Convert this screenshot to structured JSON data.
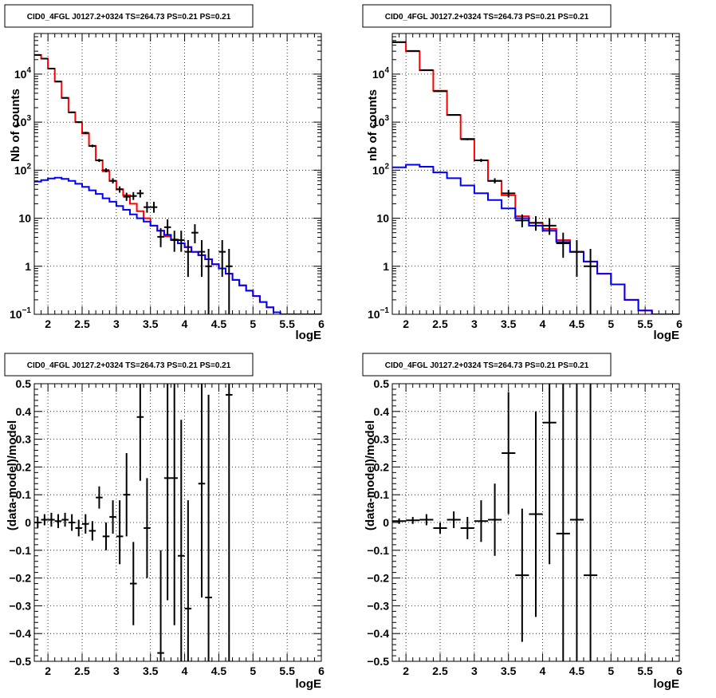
{
  "chart_data": [
    {
      "type": "histogram",
      "title": "CID0_4FGL J0127.2+0324 TS=264.73 PS=0.21 PS=0.21",
      "xlabel": "logE",
      "ylabel": "Nb of counts",
      "xlim": [
        1.8,
        6.0
      ],
      "ylim": [
        0.1,
        70000
      ],
      "ylog": true,
      "grid": true,
      "xticks": [
        "2",
        "2.5",
        "3",
        "3.5",
        "4",
        "4.5",
        "5",
        "5.5",
        "6"
      ],
      "yticks": [
        {
          "v": 0.1,
          "base": "10",
          "exp": "−1"
        },
        {
          "v": 1,
          "text": "1"
        },
        {
          "v": 10,
          "text": "10"
        },
        {
          "v": 100,
          "base": "10",
          "exp": "2"
        },
        {
          "v": 1000,
          "base": "10",
          "exp": "3"
        },
        {
          "v": 10000,
          "base": "10",
          "exp": "4"
        }
      ],
      "bin_edges": [
        1.8,
        1.9,
        2.0,
        2.1,
        2.2,
        2.3,
        2.4,
        2.5,
        2.6,
        2.7,
        2.8,
        2.9,
        3.0,
        3.1,
        3.2,
        3.3,
        3.4,
        3.5,
        3.6,
        3.7,
        3.8,
        3.9,
        4.0,
        4.1,
        4.2,
        4.3,
        4.4,
        4.5,
        4.6,
        4.7,
        4.8,
        4.9,
        5.0,
        5.1,
        5.2,
        5.3,
        5.4,
        5.5,
        5.6,
        5.7,
        5.8,
        5.9,
        6.0
      ],
      "series": [
        {
          "color": "#ff0000",
          "values": [
            25000,
            21000,
            13000,
            7000,
            3200,
            1600,
            1000,
            580,
            320,
            160,
            95,
            60,
            40,
            30,
            20,
            14,
            10,
            7,
            5.5,
            4.2,
            3.5,
            3.0,
            2.5,
            2.0,
            1.7,
            1.4,
            1.1,
            0.9,
            0.7,
            0.52,
            0.4,
            0.31,
            0.24,
            0.18,
            0.14,
            0.11,
            0.1,
            0.1,
            0.1,
            0.1,
            0.1,
            0.1
          ]
        },
        {
          "color": "#0000ff",
          "values": [
            58,
            62,
            67,
            70,
            66,
            60,
            52,
            45,
            38,
            32,
            26,
            22,
            18,
            15,
            12,
            10,
            8.5,
            7,
            5.5,
            4.5,
            3.6,
            3.0,
            2.5,
            2.0,
            1.7,
            1.4,
            1.1,
            0.9,
            0.7,
            0.52,
            0.4,
            0.31,
            0.24,
            0.18,
            0.14,
            0.11,
            0.1,
            0.1,
            0.1,
            0.1,
            0.1,
            0.1
          ]
        }
      ],
      "points": [
        {
          "x": 1.85,
          "y": 25000,
          "lo": 24500,
          "hi": 25500
        },
        {
          "x": 1.95,
          "y": 21000,
          "lo": 20500,
          "hi": 21500
        },
        {
          "x": 2.05,
          "y": 13000,
          "lo": 12700,
          "hi": 13300
        },
        {
          "x": 2.15,
          "y": 7000,
          "lo": 6800,
          "hi": 7200
        },
        {
          "x": 2.25,
          "y": 3200,
          "lo": 3100,
          "hi": 3300
        },
        {
          "x": 2.35,
          "y": 1600,
          "lo": 1550,
          "hi": 1650
        },
        {
          "x": 2.45,
          "y": 1000,
          "lo": 960,
          "hi": 1040
        },
        {
          "x": 2.55,
          "y": 600,
          "lo": 570,
          "hi": 630
        },
        {
          "x": 2.65,
          "y": 320,
          "lo": 300,
          "hi": 340
        },
        {
          "x": 2.75,
          "y": 160,
          "lo": 148,
          "hi": 172
        },
        {
          "x": 2.85,
          "y": 100,
          "lo": 90,
          "hi": 110
        },
        {
          "x": 2.95,
          "y": 60,
          "lo": 53,
          "hi": 68
        },
        {
          "x": 3.05,
          "y": 40,
          "lo": 34,
          "hi": 46
        },
        {
          "x": 3.15,
          "y": 28,
          "lo": 23,
          "hi": 34
        },
        {
          "x": 3.25,
          "y": 29,
          "lo": 24,
          "hi": 35
        },
        {
          "x": 3.35,
          "y": 33,
          "lo": 27,
          "hi": 39
        },
        {
          "x": 3.45,
          "y": 17,
          "lo": 13,
          "hi": 22
        },
        {
          "x": 3.55,
          "y": 17,
          "lo": 13,
          "hi": 22
        },
        {
          "x": 3.65,
          "y": 4.1,
          "lo": 2.5,
          "hi": 6.2
        },
        {
          "x": 3.75,
          "y": 6.5,
          "lo": 4.5,
          "hi": 9.5
        },
        {
          "x": 3.85,
          "y": 3.5,
          "lo": 2.0,
          "hi": 5.5
        },
        {
          "x": 3.95,
          "y": 3.5,
          "lo": 2.0,
          "hi": 5.5
        },
        {
          "x": 4.05,
          "y": 2.0,
          "lo": 0.6,
          "hi": 3.5
        },
        {
          "x": 4.15,
          "y": 5.0,
          "lo": 3.0,
          "hi": 7.5
        },
        {
          "x": 4.25,
          "y": 2.0,
          "lo": 0.6,
          "hi": 3.5
        },
        {
          "x": 4.35,
          "y": 1.0,
          "lo": 0.1,
          "hi": 2.3
        },
        {
          "x": 4.45,
          "y": 0,
          "lo": 0.1,
          "hi": 0.1
        },
        {
          "x": 4.55,
          "y": 2.0,
          "lo": 0.6,
          "hi": 3.5
        },
        {
          "x": 4.65,
          "y": 1.0,
          "lo": 0.1,
          "hi": 2.3
        }
      ]
    },
    {
      "type": "histogram",
      "title": "CID0_4FGL J0127.2+0324 TS=264.73 PS=0.21 PS=0.21",
      "xlabel": "logE",
      "ylabel": "nb of counts",
      "xlim": [
        1.8,
        6.0
      ],
      "ylim": [
        0.1,
        70000
      ],
      "ylog": true,
      "grid": true,
      "xticks": [
        "2",
        "2.5",
        "3",
        "3.5",
        "4",
        "4.5",
        "5",
        "5.5",
        "6"
      ],
      "yticks": [
        {
          "v": 0.1,
          "base": "10",
          "exp": "−1"
        },
        {
          "v": 1,
          "text": "1"
        },
        {
          "v": 10,
          "text": "10"
        },
        {
          "v": 100,
          "base": "10",
          "exp": "2"
        },
        {
          "v": 1000,
          "base": "10",
          "exp": "3"
        },
        {
          "v": 10000,
          "base": "10",
          "exp": "4"
        }
      ],
      "bin_edges": [
        1.8,
        2.0,
        2.2,
        2.4,
        2.6,
        2.8,
        3.0,
        3.2,
        3.4,
        3.6,
        3.8,
        4.0,
        4.2,
        4.4,
        4.6,
        4.8,
        5.0,
        5.2,
        5.4,
        5.6,
        5.8,
        6.0
      ],
      "series": [
        {
          "color": "#ff0000",
          "values": [
            46000,
            30000,
            12000,
            4500,
            1400,
            450,
            160,
            60,
            30,
            11,
            8,
            6,
            3.5,
            2.0,
            1.25,
            0.7,
            0.42,
            0.2,
            0.12,
            0.1,
            0.1
          ]
        },
        {
          "color": "#0000ff",
          "values": [
            115,
            130,
            118,
            90,
            68,
            48,
            33,
            24,
            16,
            10,
            7,
            5.5,
            3.2,
            2.0,
            1.25,
            0.7,
            0.42,
            0.2,
            0.12,
            0.1,
            0.1
          ]
        }
      ],
      "points": [
        {
          "x": 1.9,
          "y": 46500,
          "lo": 46000,
          "hi": 47000
        },
        {
          "x": 2.1,
          "y": 30300,
          "lo": 29900,
          "hi": 30700
        },
        {
          "x": 2.3,
          "y": 12100,
          "lo": 11900,
          "hi": 12300
        },
        {
          "x": 2.5,
          "y": 4400,
          "lo": 4300,
          "hi": 4500
        },
        {
          "x": 2.7,
          "y": 1420,
          "lo": 1370,
          "hi": 1470
        },
        {
          "x": 2.9,
          "y": 440,
          "lo": 420,
          "hi": 460
        },
        {
          "x": 3.1,
          "y": 160,
          "lo": 148,
          "hi": 172
        },
        {
          "x": 3.3,
          "y": 60,
          "lo": 53,
          "hi": 68
        },
        {
          "x": 3.5,
          "y": 33,
          "lo": 27,
          "hi": 39
        },
        {
          "x": 3.7,
          "y": 9,
          "lo": 6.5,
          "hi": 12
        },
        {
          "x": 3.9,
          "y": 8,
          "lo": 5.5,
          "hi": 11
        },
        {
          "x": 4.1,
          "y": 7,
          "lo": 4.5,
          "hi": 10
        },
        {
          "x": 4.3,
          "y": 3,
          "lo": 1.5,
          "hi": 5
        },
        {
          "x": 4.5,
          "y": 2,
          "lo": 0.6,
          "hi": 3.5
        },
        {
          "x": 4.7,
          "y": 1,
          "lo": 0.1,
          "hi": 2.3
        }
      ]
    },
    {
      "type": "scatter",
      "title": "CID0_4FGL J0127.2+0324 TS=264.73 PS=0.21 PS=0.21",
      "xlabel": "logE",
      "ylabel": "(data-model)/model",
      "xlim": [
        1.8,
        6.0
      ],
      "ylim": [
        -0.5,
        0.5
      ],
      "ylog": false,
      "grid": true,
      "xticks": [
        "2",
        "2.5",
        "3",
        "3.5",
        "4",
        "4.5",
        "5",
        "5.5",
        "6"
      ],
      "yticks": [
        {
          "v": -0.5,
          "text": "−0.5"
        },
        {
          "v": -0.4,
          "text": "−0.4"
        },
        {
          "v": -0.3,
          "text": "−0.3"
        },
        {
          "v": -0.2,
          "text": "−0.2"
        },
        {
          "v": -0.1,
          "text": "−0.1"
        },
        {
          "v": 0,
          "text": "0"
        },
        {
          "v": 0.1,
          "text": "0.1"
        },
        {
          "v": 0.2,
          "text": "0.2"
        },
        {
          "v": 0.3,
          "text": "0.3"
        },
        {
          "v": 0.4,
          "text": "0.4"
        },
        {
          "v": 0.5,
          "text": "0.5"
        }
      ],
      "halfwidth": 0.05,
      "points": [
        {
          "x": 1.85,
          "y": 0.0,
          "lo": -0.02,
          "hi": 0.02
        },
        {
          "x": 1.95,
          "y": 0.01,
          "lo": -0.01,
          "hi": 0.03
        },
        {
          "x": 2.05,
          "y": 0.01,
          "lo": -0.015,
          "hi": 0.035
        },
        {
          "x": 2.15,
          "y": 0.005,
          "lo": -0.02,
          "hi": 0.03
        },
        {
          "x": 2.25,
          "y": 0.01,
          "lo": -0.015,
          "hi": 0.035
        },
        {
          "x": 2.35,
          "y": 0.0,
          "lo": -0.03,
          "hi": 0.03
        },
        {
          "x": 2.45,
          "y": -0.02,
          "lo": -0.05,
          "hi": 0.01
        },
        {
          "x": 2.55,
          "y": -0.005,
          "lo": -0.04,
          "hi": 0.03
        },
        {
          "x": 2.65,
          "y": -0.03,
          "lo": -0.065,
          "hi": 0.005
        },
        {
          "x": 2.75,
          "y": 0.09,
          "lo": 0.05,
          "hi": 0.13
        },
        {
          "x": 2.85,
          "y": -0.05,
          "lo": -0.1,
          "hi": 0.0
        },
        {
          "x": 2.95,
          "y": 0.02,
          "lo": -0.04,
          "hi": 0.08
        },
        {
          "x": 3.05,
          "y": -0.05,
          "lo": -0.15,
          "hi": 0.08
        },
        {
          "x": 3.15,
          "y": 0.1,
          "lo": -0.05,
          "hi": 0.25
        },
        {
          "x": 3.25,
          "y": -0.22,
          "lo": -0.37,
          "hi": -0.07
        },
        {
          "x": 3.35,
          "y": 0.38,
          "lo": 0.15,
          "hi": 0.5
        },
        {
          "x": 3.45,
          "y": -0.02,
          "lo": -0.2,
          "hi": 0.16
        },
        {
          "x": 3.65,
          "y": -0.47,
          "lo": -0.5,
          "hi": -0.1
        },
        {
          "x": 3.75,
          "y": 0.16,
          "lo": -0.28,
          "hi": 0.5
        },
        {
          "x": 3.85,
          "y": 0.16,
          "lo": -0.37,
          "hi": 0.5
        },
        {
          "x": 3.95,
          "y": -0.12,
          "lo": -0.5,
          "hi": 0.37
        },
        {
          "x": 4.05,
          "y": -0.31,
          "lo": -0.5,
          "hi": 0.08
        },
        {
          "x": 4.25,
          "y": 0.14,
          "lo": -0.27,
          "hi": 0.5
        },
        {
          "x": 4.35,
          "y": -0.27,
          "lo": -0.5,
          "hi": 0.46
        },
        {
          "x": 4.65,
          "y": 0.46,
          "lo": -0.5,
          "hi": 0.5
        }
      ]
    },
    {
      "type": "scatter",
      "title": "CID0_4FGL J0127.2+0324 TS=264.73 PS=0.21 PS=0.21",
      "xlabel": "logE",
      "ylabel": "(data-model)/model",
      "xlim": [
        1.8,
        6.0
      ],
      "ylim": [
        -0.5,
        0.5
      ],
      "ylog": false,
      "grid": true,
      "xticks": [
        "2",
        "2.5",
        "3",
        "3.5",
        "4",
        "4.5",
        "5",
        "5.5",
        "6"
      ],
      "yticks": [
        {
          "v": -0.5,
          "text": "−0.5"
        },
        {
          "v": -0.4,
          "text": "−0.4"
        },
        {
          "v": -0.3,
          "text": "−0.3"
        },
        {
          "v": -0.2,
          "text": "−0.2"
        },
        {
          "v": -0.1,
          "text": "−0.1"
        },
        {
          "v": 0,
          "text": "0"
        },
        {
          "v": 0.1,
          "text": "0.1"
        },
        {
          "v": 0.2,
          "text": "0.2"
        },
        {
          "v": 0.3,
          "text": "0.3"
        },
        {
          "v": 0.4,
          "text": "0.4"
        },
        {
          "v": 0.5,
          "text": "0.5"
        }
      ],
      "halfwidth": 0.1,
      "points": [
        {
          "x": 1.9,
          "y": 0.005,
          "lo": -0.005,
          "hi": 0.015
        },
        {
          "x": 2.1,
          "y": 0.008,
          "lo": -0.005,
          "hi": 0.02
        },
        {
          "x": 2.3,
          "y": 0.01,
          "lo": -0.01,
          "hi": 0.03
        },
        {
          "x": 2.5,
          "y": -0.02,
          "lo": -0.04,
          "hi": 0.0
        },
        {
          "x": 2.7,
          "y": 0.01,
          "lo": -0.02,
          "hi": 0.04
        },
        {
          "x": 2.9,
          "y": -0.02,
          "lo": -0.06,
          "hi": 0.02
        },
        {
          "x": 3.1,
          "y": 0.005,
          "lo": -0.07,
          "hi": 0.08
        },
        {
          "x": 3.3,
          "y": 0.01,
          "lo": -0.12,
          "hi": 0.14
        },
        {
          "x": 3.5,
          "y": 0.25,
          "lo": 0.03,
          "hi": 0.47
        },
        {
          "x": 3.7,
          "y": -0.19,
          "lo": -0.43,
          "hi": 0.05
        },
        {
          "x": 3.9,
          "y": 0.03,
          "lo": -0.34,
          "hi": 0.4
        },
        {
          "x": 4.1,
          "y": 0.36,
          "lo": -0.15,
          "hi": 0.5
        },
        {
          "x": 4.3,
          "y": -0.04,
          "lo": -0.5,
          "hi": 0.5
        },
        {
          "x": 4.5,
          "y": 0.01,
          "lo": -0.5,
          "hi": 0.5
        },
        {
          "x": 4.7,
          "y": -0.19,
          "lo": -0.5,
          "hi": 0.5
        }
      ]
    }
  ]
}
